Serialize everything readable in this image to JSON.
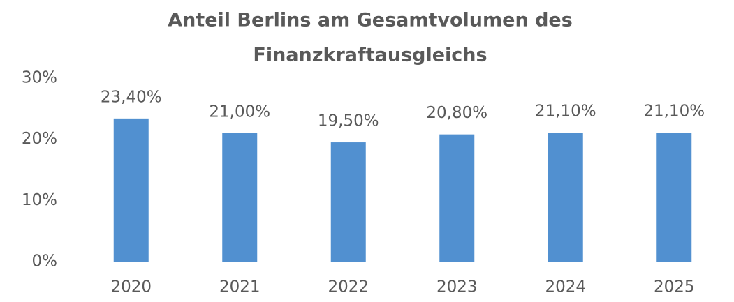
{
  "chart_data": {
    "type": "bar",
    "title": [
      "Anteil Berlins am Gesamtvolumen des",
      "Finanzkraftausgleichs"
    ],
    "categories": [
      "2020",
      "2021",
      "2022",
      "2023",
      "2024",
      "2025"
    ],
    "values": [
      23.4,
      21.0,
      19.5,
      20.8,
      21.1,
      21.1
    ],
    "value_labels": [
      "23,40%",
      "21,00%",
      "19,50%",
      "20,80%",
      "21,10%",
      "21,10%"
    ],
    "color": "#5190d0",
    "ylim": [
      0,
      30
    ],
    "yticks": [
      {
        "value": 0,
        "label": "0%"
      },
      {
        "value": 10,
        "label": "10%"
      },
      {
        "value": 20,
        "label": "20%"
      },
      {
        "value": 30,
        "label": "30%"
      }
    ],
    "grid": false
  }
}
